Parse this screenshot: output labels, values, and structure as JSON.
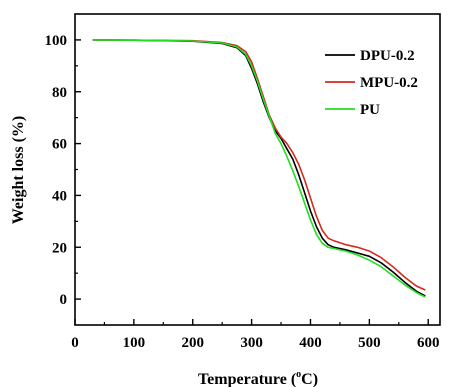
{
  "chart_data": {
    "type": "line",
    "xlabel_prefix": "Temperature (",
    "xlabel_sup": "o",
    "xlabel_suffix": "C)",
    "ylabel": "Weight loss (%)",
    "xlim": [
      0,
      620
    ],
    "ylim": [
      -10,
      110
    ],
    "xticks": [
      0,
      100,
      200,
      300,
      400,
      500,
      600
    ],
    "yticks": [
      0,
      20,
      40,
      60,
      80,
      100
    ],
    "legend_position": "top-right",
    "grid": false,
    "series": [
      {
        "name": "DPU-0.2",
        "color": "#000000",
        "points": [
          [
            30,
            100
          ],
          [
            100,
            99.9
          ],
          [
            200,
            99.5
          ],
          [
            250,
            98.6
          ],
          [
            275,
            97
          ],
          [
            290,
            94
          ],
          [
            300,
            89
          ],
          [
            310,
            83
          ],
          [
            320,
            76
          ],
          [
            330,
            70
          ],
          [
            340,
            65
          ],
          [
            350,
            62
          ],
          [
            360,
            58
          ],
          [
            370,
            54
          ],
          [
            380,
            48
          ],
          [
            390,
            41
          ],
          [
            400,
            34
          ],
          [
            410,
            28
          ],
          [
            420,
            23.5
          ],
          [
            430,
            21
          ],
          [
            440,
            20
          ],
          [
            460,
            19
          ],
          [
            480,
            17.8
          ],
          [
            500,
            16.5
          ],
          [
            520,
            14
          ],
          [
            540,
            10.5
          ],
          [
            560,
            6.5
          ],
          [
            580,
            3
          ],
          [
            595,
            1.2
          ]
        ]
      },
      {
        "name": "MPU-0.2",
        "color": "#d42a20",
        "points": [
          [
            30,
            100
          ],
          [
            100,
            99.9
          ],
          [
            200,
            99.7
          ],
          [
            250,
            99
          ],
          [
            275,
            97.8
          ],
          [
            290,
            95.5
          ],
          [
            300,
            91.5
          ],
          [
            310,
            85
          ],
          [
            320,
            78
          ],
          [
            330,
            71
          ],
          [
            340,
            66
          ],
          [
            350,
            62.5
          ],
          [
            360,
            60
          ],
          [
            370,
            56.5
          ],
          [
            380,
            52
          ],
          [
            390,
            46
          ],
          [
            400,
            39
          ],
          [
            410,
            32
          ],
          [
            420,
            26.5
          ],
          [
            430,
            23.5
          ],
          [
            440,
            22.5
          ],
          [
            460,
            21
          ],
          [
            480,
            20
          ],
          [
            500,
            18.5
          ],
          [
            520,
            16
          ],
          [
            540,
            12.5
          ],
          [
            560,
            8.5
          ],
          [
            580,
            5
          ],
          [
            595,
            3.5
          ]
        ]
      },
      {
        "name": "PU",
        "color": "#22dd22",
        "points": [
          [
            30,
            100
          ],
          [
            100,
            99.9
          ],
          [
            200,
            99.6
          ],
          [
            250,
            98.8
          ],
          [
            275,
            97.3
          ],
          [
            290,
            94.5
          ],
          [
            300,
            90
          ],
          [
            310,
            84
          ],
          [
            320,
            77
          ],
          [
            330,
            70.5
          ],
          [
            340,
            64
          ],
          [
            350,
            60
          ],
          [
            360,
            55
          ],
          [
            370,
            49.5
          ],
          [
            380,
            43.5
          ],
          [
            390,
            37
          ],
          [
            400,
            30.5
          ],
          [
            410,
            25
          ],
          [
            420,
            21.5
          ],
          [
            430,
            20
          ],
          [
            440,
            19.5
          ],
          [
            460,
            18.5
          ],
          [
            480,
            17
          ],
          [
            500,
            15
          ],
          [
            520,
            12.5
          ],
          [
            540,
            9
          ],
          [
            560,
            5.5
          ],
          [
            580,
            2.5
          ],
          [
            595,
            0.8
          ]
        ]
      }
    ]
  }
}
